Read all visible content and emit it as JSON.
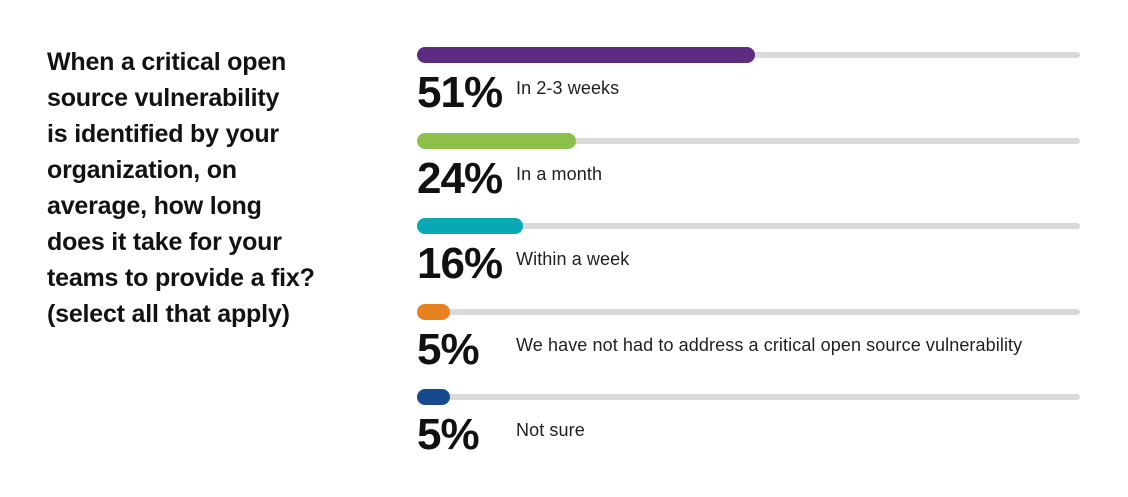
{
  "question": "When a critical open source vulnerability is identified by your organization, on average, how long does it take for your teams to provide a fix? (select all that apply)",
  "question_lines": [
    "When a critical open",
    "source vulnerability",
    "is identified by your",
    "organization, on",
    "average, how long",
    "does it take for your",
    "teams to provide a fix?",
    "(select all that apply)"
  ],
  "chart_data": {
    "type": "bar",
    "orientation": "horizontal",
    "unit": "percent",
    "xlim": [
      0,
      100
    ],
    "grid": false,
    "legend": "none",
    "categories": [
      "In 2-3 weeks",
      "In a month",
      "Within a week",
      "We have not had to address a critical open source vulnerability",
      "Not sure"
    ],
    "values": [
      51,
      24,
      16,
      5,
      5
    ],
    "value_labels": [
      "51%",
      "24%",
      "16%",
      "5%",
      "5%"
    ],
    "bar_colors": [
      "#5B2C82",
      "#8CC04B",
      "#06A9B4",
      "#E8811F",
      "#17498D"
    ],
    "track_color": "#D9D9D9"
  },
  "colors": {
    "background": "#FFFFFF",
    "text": "#121212"
  }
}
